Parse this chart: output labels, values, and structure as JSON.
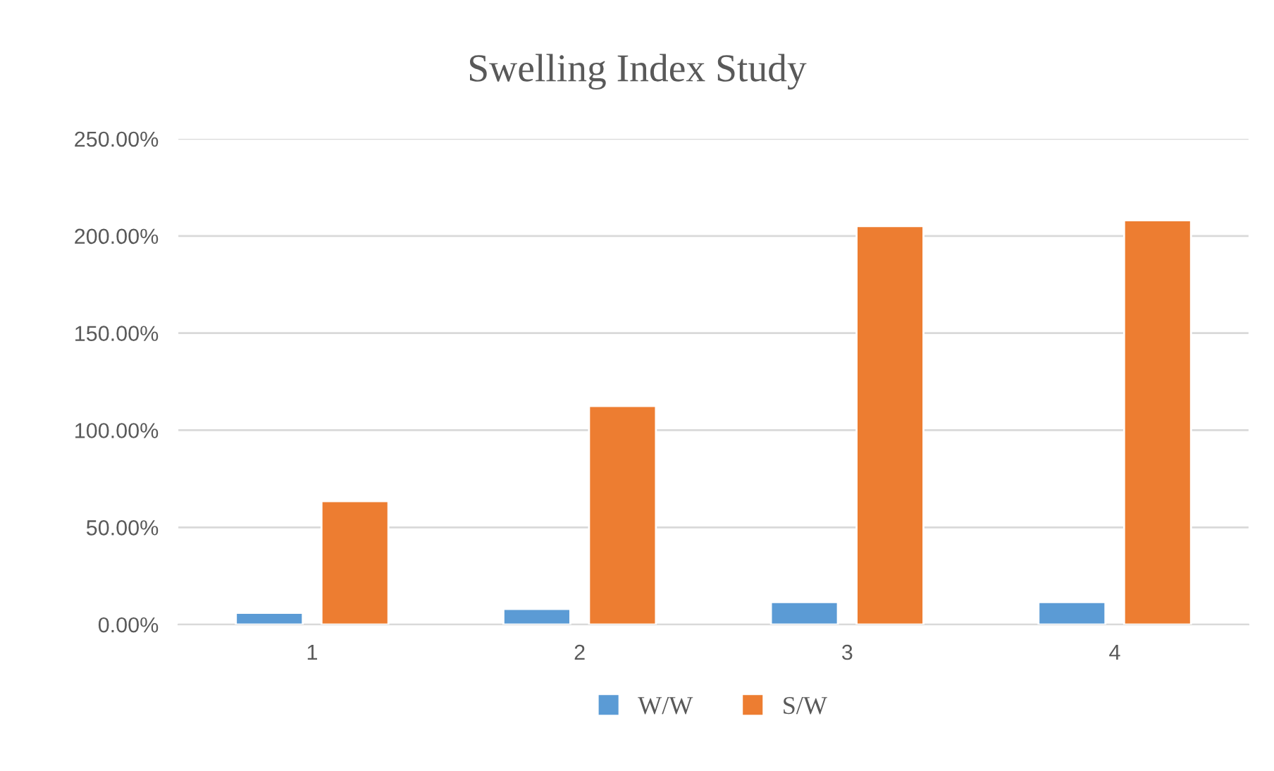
{
  "chart_data": {
    "type": "bar",
    "title": "Swelling Index Study",
    "categories": [
      "1",
      "2",
      "3",
      "4"
    ],
    "series": [
      {
        "name": "W/W",
        "color": "#5b9bd5",
        "values": [
          6,
          8,
          11.5,
          11.5
        ]
      },
      {
        "name": "S/W",
        "color": "#ed7d31",
        "values": [
          63.5,
          112.5,
          205,
          208
        ]
      }
    ],
    "ylim": [
      0,
      250
    ],
    "yticks": [
      {
        "value": 0,
        "label": "0.00%"
      },
      {
        "value": 50,
        "label": "50.00%"
      },
      {
        "value": 100,
        "label": "100.00%"
      },
      {
        "value": 150,
        "label": "150.00%"
      },
      {
        "value": 200,
        "label": "200.00%"
      },
      {
        "value": 250,
        "label": "250.00%"
      }
    ],
    "grid": "y",
    "legend": "bottom"
  }
}
